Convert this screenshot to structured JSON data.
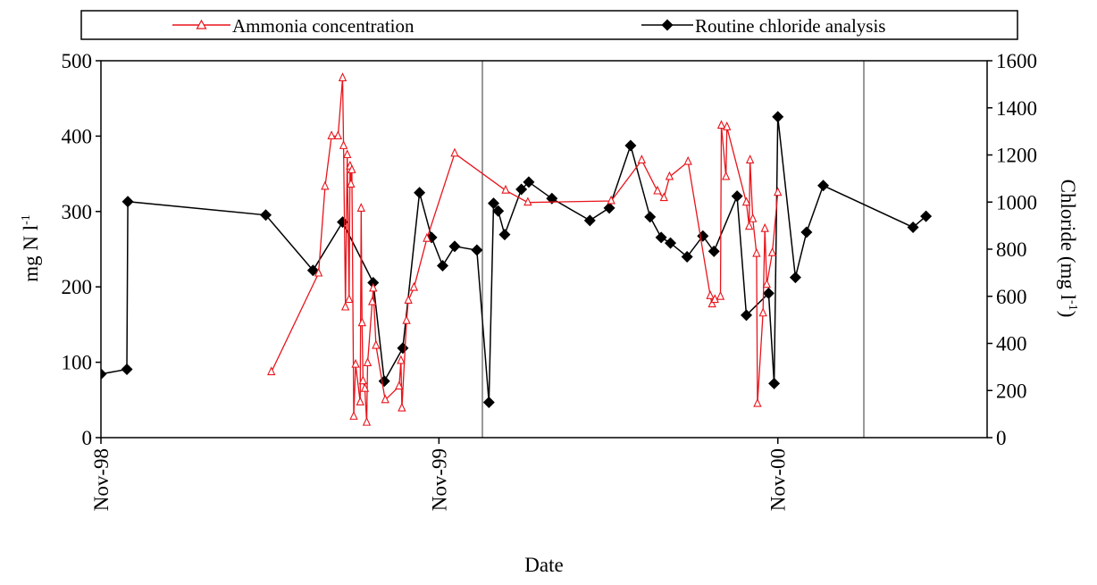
{
  "chart_data": {
    "type": "line",
    "xlabel": "Date",
    "ylabel_left": "mg N l",
    "ylabel_left_sup": "-1",
    "ylabel_right": "Chloride (mg l",
    "ylabel_right_sup": "-1",
    "ylabel_right_close": ")",
    "x_range": [
      "1998-11-01",
      "2001-06-15"
    ],
    "x_ticks": [
      {
        "date": "1998-11-01",
        "label": "Nov-98"
      },
      {
        "date": "1999-11-01",
        "label": "Nov-99"
      },
      {
        "date": "2000-11-01",
        "label": "Nov-00"
      }
    ],
    "vertical_gridlines": [
      "1999-11-01",
      "2000-11-01"
    ],
    "ylim_left": [
      0,
      500
    ],
    "yticks_left": [
      0,
      100,
      200,
      300,
      400,
      500
    ],
    "ylim_right": [
      0,
      1600
    ],
    "yticks_right": [
      0,
      200,
      400,
      600,
      800,
      1000,
      1200,
      1400,
      1600
    ],
    "legend": {
      "placement": "top",
      "entries": [
        "Ammonia concentration",
        "Routine chloride analysis"
      ]
    },
    "series": [
      {
        "name": "Ammonia concentration",
        "axis": "left",
        "color": "#e8141b",
        "marker": "open-triangle",
        "points": [
          [
            "1999-05-04",
            87
          ],
          [
            "1999-06-24",
            218
          ],
          [
            "1999-07-01",
            333
          ],
          [
            "1999-07-08",
            400
          ],
          [
            "1999-07-15",
            400
          ],
          [
            "1999-07-20",
            477
          ],
          [
            "1999-07-21",
            387
          ],
          [
            "1999-07-23",
            173
          ],
          [
            "1999-07-25",
            375
          ],
          [
            "1999-07-27",
            183
          ],
          [
            "1999-07-28",
            360
          ],
          [
            "1999-07-29",
            336
          ],
          [
            "1999-07-30",
            355
          ],
          [
            "1999-08-01",
            28
          ],
          [
            "1999-08-03",
            97
          ],
          [
            "1999-08-08",
            47
          ],
          [
            "1999-08-09",
            304
          ],
          [
            "1999-08-10",
            152
          ],
          [
            "1999-08-11",
            75
          ],
          [
            "1999-08-13",
            65
          ],
          [
            "1999-08-15",
            20
          ],
          [
            "1999-08-16",
            99
          ],
          [
            "1999-08-21",
            180
          ],
          [
            "1999-08-22",
            198
          ],
          [
            "1999-08-25",
            122
          ],
          [
            "1999-09-04",
            50
          ],
          [
            "1999-09-19",
            68
          ],
          [
            "1999-09-21",
            102
          ],
          [
            "1999-09-22",
            39
          ],
          [
            "1999-09-27",
            155
          ],
          [
            "1999-09-29",
            182
          ],
          [
            "1999-10-05",
            199
          ],
          [
            "1999-10-19",
            264
          ],
          [
            "1999-11-18",
            377
          ],
          [
            "2000-01-12",
            328
          ],
          [
            "2000-02-05",
            312
          ],
          [
            "2000-05-05",
            314
          ],
          [
            "2000-06-07",
            368
          ],
          [
            "2000-06-24",
            327
          ],
          [
            "2000-07-01",
            318
          ],
          [
            "2000-07-07",
            346
          ],
          [
            "2000-07-27",
            366
          ],
          [
            "2000-08-20",
            188
          ],
          [
            "2000-08-22",
            177
          ],
          [
            "2000-08-25",
            183
          ],
          [
            "2000-08-31",
            187
          ],
          [
            "2000-09-01",
            414
          ],
          [
            "2000-09-06",
            346
          ],
          [
            "2000-09-07",
            412
          ],
          [
            "2000-09-28",
            312
          ],
          [
            "2000-10-01",
            280
          ],
          [
            "2000-10-02",
            368
          ],
          [
            "2000-10-05",
            290
          ],
          [
            "2000-10-09",
            244
          ],
          [
            "2000-10-10",
            45
          ],
          [
            "2000-10-16",
            165
          ],
          [
            "2000-10-18",
            277
          ],
          [
            "2000-10-20",
            203
          ],
          [
            "2000-10-26",
            245
          ],
          [
            "2000-11-01",
            325
          ]
        ]
      },
      {
        "name": "Routine chloride analysis",
        "axis": "right",
        "color": "#000000",
        "marker": "filled-diamond",
        "points": [
          [
            "1998-11-01",
            270
          ],
          [
            "1998-11-29",
            290
          ],
          [
            "1998-11-30",
            1002
          ],
          [
            "1999-04-28",
            945
          ],
          [
            "1999-06-18",
            710
          ],
          [
            "1999-07-20",
            915
          ],
          [
            "1999-08-22",
            658
          ],
          [
            "1999-09-03",
            240
          ],
          [
            "1999-09-23",
            380
          ],
          [
            "1999-10-11",
            1040
          ],
          [
            "1999-10-24",
            850
          ],
          [
            "1999-11-05",
            730
          ],
          [
            "1999-11-18",
            812
          ],
          [
            "1999-12-12",
            796
          ],
          [
            "1999-12-25",
            150
          ],
          [
            "1999-12-30",
            995
          ],
          [
            "2000-01-04",
            962
          ],
          [
            "2000-01-11",
            862
          ],
          [
            "2000-01-29",
            1054
          ],
          [
            "2000-02-06",
            1085
          ],
          [
            "2000-03-02",
            1015
          ],
          [
            "2000-04-12",
            922
          ],
          [
            "2000-05-03",
            975
          ],
          [
            "2000-05-26",
            1240
          ],
          [
            "2000-06-16",
            937
          ],
          [
            "2000-06-28",
            850
          ],
          [
            "2000-07-08",
            826
          ],
          [
            "2000-07-26",
            768
          ],
          [
            "2000-08-12",
            856
          ],
          [
            "2000-08-24",
            791
          ],
          [
            "2000-09-18",
            1025
          ],
          [
            "2000-09-28",
            520
          ],
          [
            "2000-10-22",
            613
          ],
          [
            "2000-10-28",
            230
          ],
          [
            "2000-11-01",
            1362
          ],
          [
            "2000-11-20",
            680
          ],
          [
            "2000-12-02",
            872
          ],
          [
            "2000-12-20",
            1070
          ],
          [
            "2001-03-27",
            893
          ],
          [
            "2001-04-10",
            940
          ]
        ]
      }
    ]
  }
}
